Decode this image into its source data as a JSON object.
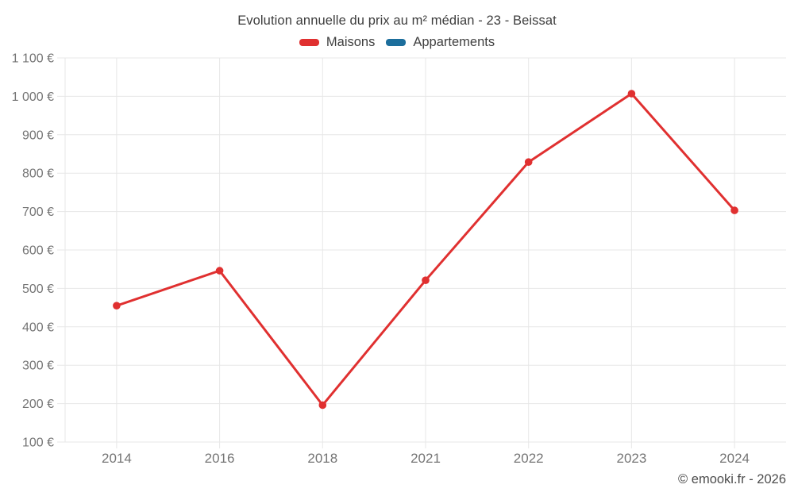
{
  "header": {
    "title": "Evolution annuelle du prix au m² médian - 23 - Beissat"
  },
  "legend": {
    "items": [
      {
        "label": "Maisons",
        "color": "#e03030"
      },
      {
        "label": "Appartements",
        "color": "#1c6e9c"
      }
    ]
  },
  "footer": {
    "copyright": "© emooki.fr - 2026"
  },
  "chart_data": {
    "type": "line",
    "title": "Evolution annuelle du prix au m² médian - 23 - Beissat",
    "categories": [
      "2014",
      "2016",
      "2018",
      "2021",
      "2022",
      "2023",
      "2024"
    ],
    "series": [
      {
        "name": "Maisons",
        "color": "#e03030",
        "values": [
          455,
          546,
          196,
          521,
          829,
          1007,
          703
        ]
      },
      {
        "name": "Appartements",
        "color": "#1c6e9c",
        "values": []
      }
    ],
    "xlabel": "",
    "ylabel": "",
    "ylim": [
      100,
      1100
    ],
    "ytick_step": 100,
    "ytick_suffix": " €",
    "grid": true,
    "legend_position": "top",
    "x_axis_type": "category"
  }
}
